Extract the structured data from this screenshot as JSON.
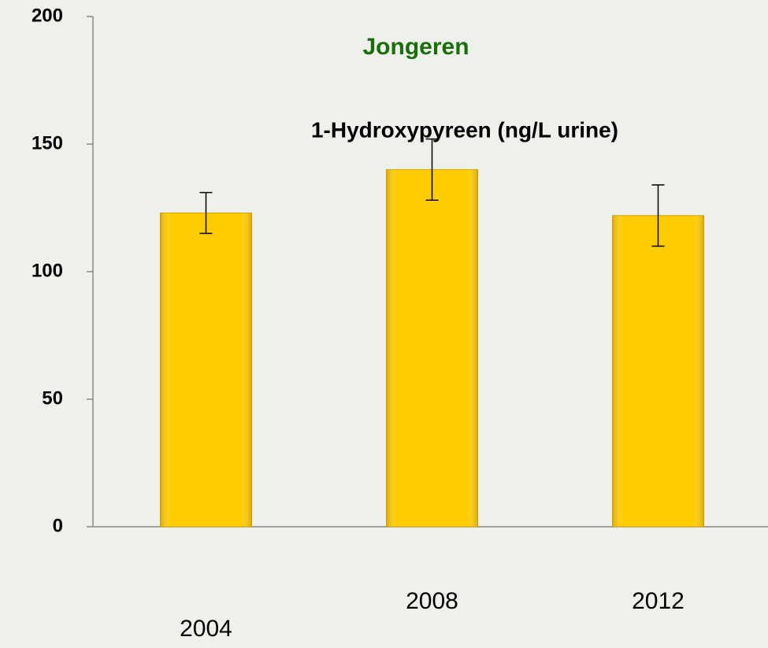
{
  "chart_data": {
    "type": "bar",
    "title": "Jongeren",
    "subtitle": "1-Hydroxypyreen (ng/L urine)",
    "categories": [
      "2004",
      "2008",
      "2012"
    ],
    "values": [
      123,
      140,
      122
    ],
    "errors": [
      8,
      12,
      12
    ],
    "color": "#ffcc00",
    "ylim": [
      0,
      200
    ],
    "yticks": [
      0,
      50,
      100,
      150,
      200
    ],
    "grid": false
  }
}
